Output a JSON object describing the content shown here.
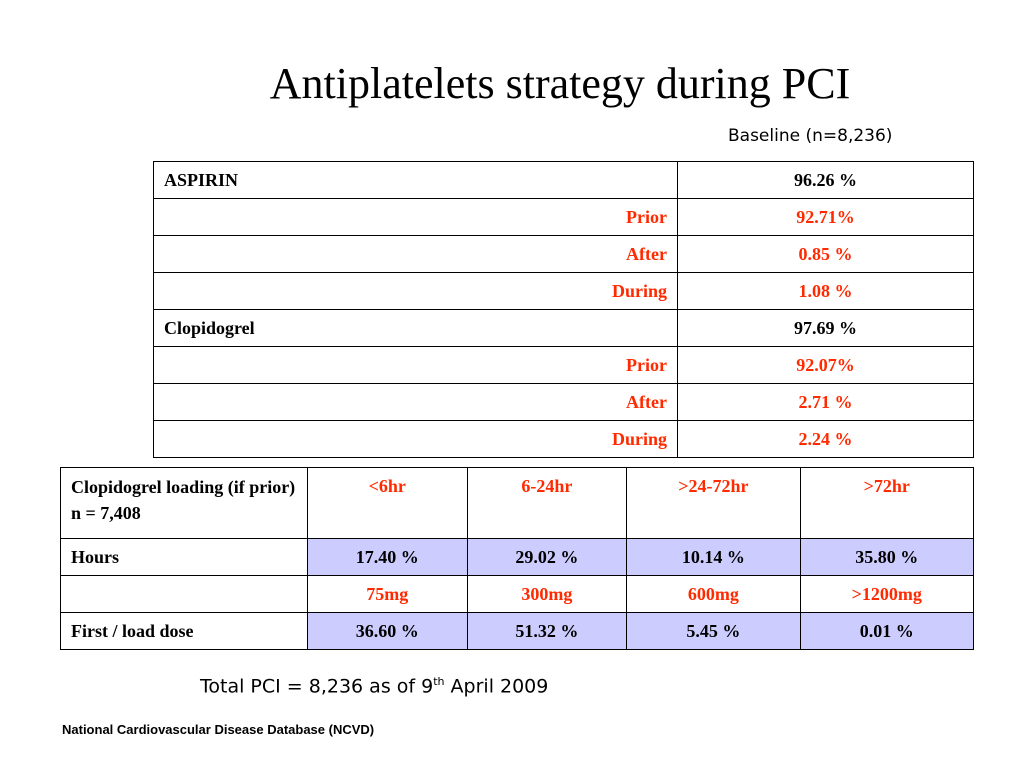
{
  "title": "Antiplatelets strategy during PCI",
  "baseline": "Baseline (n=8,236)",
  "aspirin_table": {
    "rows": [
      {
        "label": "ASPIRIN",
        "value": "96.26 %"
      },
      {
        "label": "Prior",
        "value": "92.71%"
      },
      {
        "label": "After",
        "value": "0.85 %"
      },
      {
        "label": "During",
        "value": "1.08 %"
      },
      {
        "label": "Clopidogrel",
        "value": "97.69 %"
      },
      {
        "label": "Prior",
        "value": "92.07%"
      },
      {
        "label": "After",
        "value": "2.71 %"
      },
      {
        "label": "During",
        "value": "2.24 %"
      }
    ]
  },
  "loading_table": {
    "header_label": "Clopidogrel loading (if prior) n = 7,408",
    "time_headers": [
      "<6hr",
      "6-24hr",
      ">24-72hr",
      ">72hr"
    ],
    "hours_label": "Hours",
    "hours_values": [
      "17.40 %",
      "29.02 %",
      "10.14 %",
      "35.80 %"
    ],
    "dose_label": "",
    "dose_headers": [
      "75mg",
      "300mg",
      "600mg",
      ">1200mg"
    ],
    "first_dose_label": "First / load dose",
    "first_dose_values": [
      "36.60 %",
      "51.32 %",
      "5.45 %",
      "0.01 %"
    ]
  },
  "total": {
    "prefix": "Total PCI = 8,236 as of  9",
    "sup": "th",
    "suffix": " April 2009"
  },
  "source": "National Cardiovascular Disease Database (NCVD)",
  "colors": {
    "highlight_text": "#ff2a00",
    "shaded_cell": "#ccccff"
  }
}
